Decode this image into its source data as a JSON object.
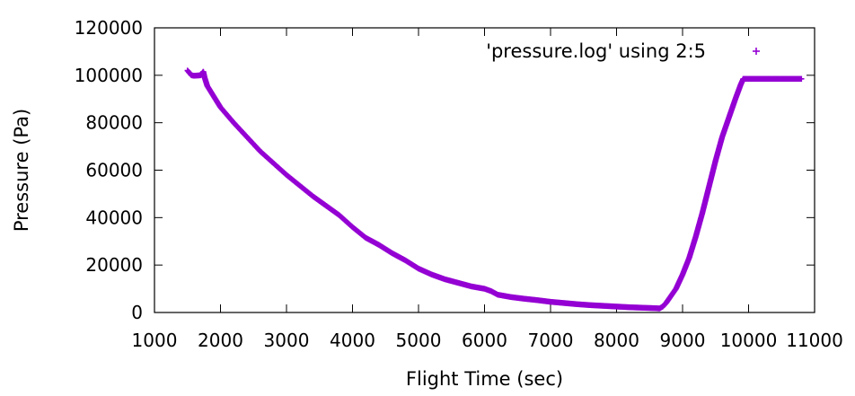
{
  "chart_data": {
    "type": "scatter",
    "title": "",
    "xlabel": "Flight Time (sec)",
    "ylabel": "Pressure (Pa)",
    "xlim": [
      1000,
      11000
    ],
    "ylim": [
      0,
      120000
    ],
    "xticks": [
      1000,
      2000,
      3000,
      4000,
      5000,
      6000,
      7000,
      8000,
      9000,
      10000,
      11000
    ],
    "yticks": [
      0,
      20000,
      40000,
      60000,
      80000,
      100000,
      120000
    ],
    "grid": false,
    "legend_position": "top-right",
    "marker": "plus",
    "series": [
      {
        "name": "'pressure.log' using 2:5",
        "color": "#9400d3",
        "points": [
          [
            1500,
            102000
          ],
          [
            1530,
            101000
          ],
          [
            1560,
            100000
          ],
          [
            1600,
            99800
          ],
          [
            1650,
            99900
          ],
          [
            1700,
            100000
          ],
          [
            1740,
            101500
          ],
          [
            1760,
            99000
          ],
          [
            1800,
            95500
          ],
          [
            1900,
            91000
          ],
          [
            2000,
            86500
          ],
          [
            2200,
            80000
          ],
          [
            2400,
            74000
          ],
          [
            2600,
            68000
          ],
          [
            2800,
            63000
          ],
          [
            3000,
            58000
          ],
          [
            3200,
            53500
          ],
          [
            3400,
            49000
          ],
          [
            3600,
            45000
          ],
          [
            3800,
            41000
          ],
          [
            4000,
            36000
          ],
          [
            4200,
            31500
          ],
          [
            4400,
            28500
          ],
          [
            4600,
            25000
          ],
          [
            4800,
            22000
          ],
          [
            5000,
            18500
          ],
          [
            5200,
            16000
          ],
          [
            5400,
            14000
          ],
          [
            5600,
            12500
          ],
          [
            5800,
            11000
          ],
          [
            6000,
            10000
          ],
          [
            6100,
            9000
          ],
          [
            6200,
            7500
          ],
          [
            6400,
            6500
          ],
          [
            6600,
            5800
          ],
          [
            6800,
            5200
          ],
          [
            7000,
            4500
          ],
          [
            7200,
            4000
          ],
          [
            7400,
            3500
          ],
          [
            7600,
            3100
          ],
          [
            7800,
            2800
          ],
          [
            8000,
            2500
          ],
          [
            8200,
            2200
          ],
          [
            8400,
            2000
          ],
          [
            8600,
            1800
          ],
          [
            8650,
            1700
          ],
          [
            8700,
            2500
          ],
          [
            8750,
            4000
          ],
          [
            8800,
            6000
          ],
          [
            8900,
            10000
          ],
          [
            9000,
            16000
          ],
          [
            9100,
            23000
          ],
          [
            9200,
            32000
          ],
          [
            9300,
            42000
          ],
          [
            9400,
            53000
          ],
          [
            9500,
            64000
          ],
          [
            9600,
            74000
          ],
          [
            9700,
            82000
          ],
          [
            9800,
            90000
          ],
          [
            9880,
            96000
          ],
          [
            9920,
            98500
          ],
          [
            10000,
            98500
          ],
          [
            10200,
            98500
          ],
          [
            10400,
            98500
          ],
          [
            10600,
            98500
          ],
          [
            10800,
            98500
          ]
        ]
      }
    ]
  }
}
